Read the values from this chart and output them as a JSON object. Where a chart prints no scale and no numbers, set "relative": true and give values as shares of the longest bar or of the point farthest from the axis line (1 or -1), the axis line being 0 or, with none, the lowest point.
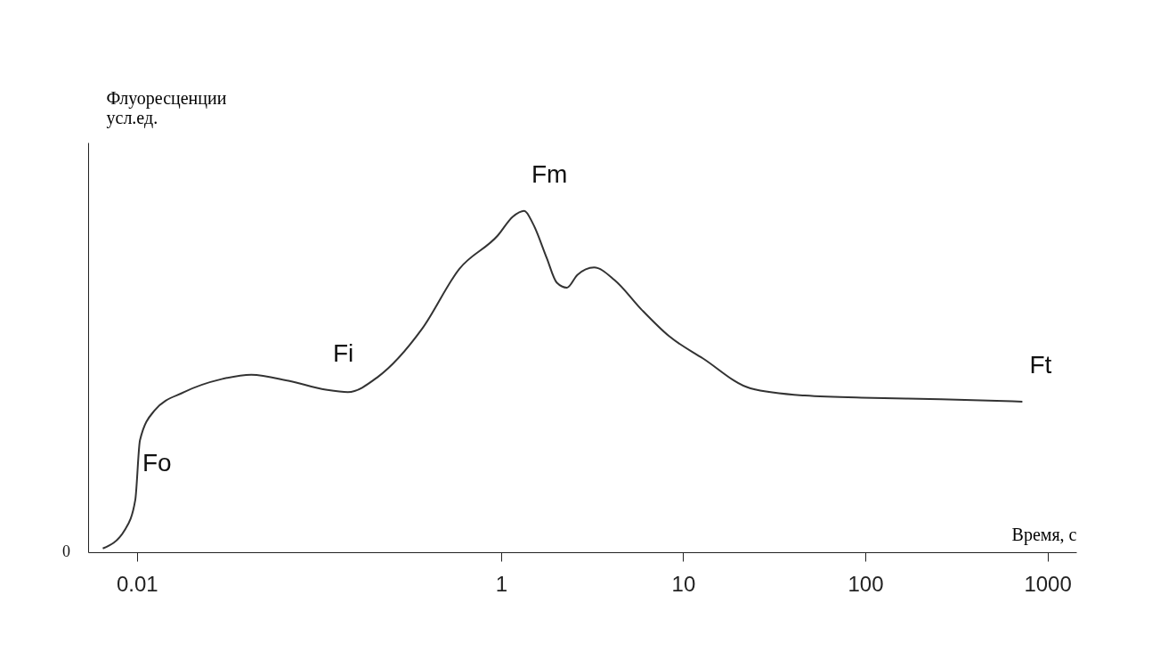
{
  "chart_data": {
    "type": "line",
    "relative": true,
    "xlabel": "Время, с",
    "ylabel": "Флуоресценции\nусл.ед.",
    "log": "x",
    "xlim": [
      0.0054,
      1440
    ],
    "xticks": [
      0.01,
      1,
      10,
      100,
      1000
    ],
    "grid": false,
    "marker": "none",
    "line_style": "solid",
    "x": [
      0.0065,
      0.0086,
      0.0098,
      0.0104,
      0.0125,
      0.0182,
      0.0292,
      0.0425,
      0.068,
      0.109,
      0.144,
      0.21,
      0.369,
      0.59,
      0.96,
      1.16,
      1.34,
      1.5,
      1.78,
      2.02,
      2.3,
      2.62,
      3.24,
      4.2,
      5.92,
      8.35,
      12.8,
      23.4,
      46.5,
      110,
      260,
      728
    ],
    "series": [
      {
        "color": "#333333",
        "values": [
          0.011,
          0.066,
          0.153,
          0.328,
          0.415,
          0.469,
          0.507,
          0.52,
          0.502,
          0.476,
          0.469,
          0.513,
          0.655,
          0.83,
          0.928,
          0.983,
          1.0,
          0.961,
          0.862,
          0.79,
          0.775,
          0.812,
          0.834,
          0.797,
          0.71,
          0.633,
          0.568,
          0.48,
          0.459,
          0.452,
          0.448,
          0.441
        ]
      }
    ],
    "annotations": [
      "0",
      {
        "text": "Fo",
        "x": 0.0098,
        "y": 0.153
      },
      {
        "text": "Fi",
        "x": 0.109,
        "y": 0.476
      },
      {
        "text": "Fm",
        "x": 1.34,
        "y": 1.0
      },
      {
        "text": "Ft",
        "x": 728,
        "y": 0.441
      }
    ]
  }
}
